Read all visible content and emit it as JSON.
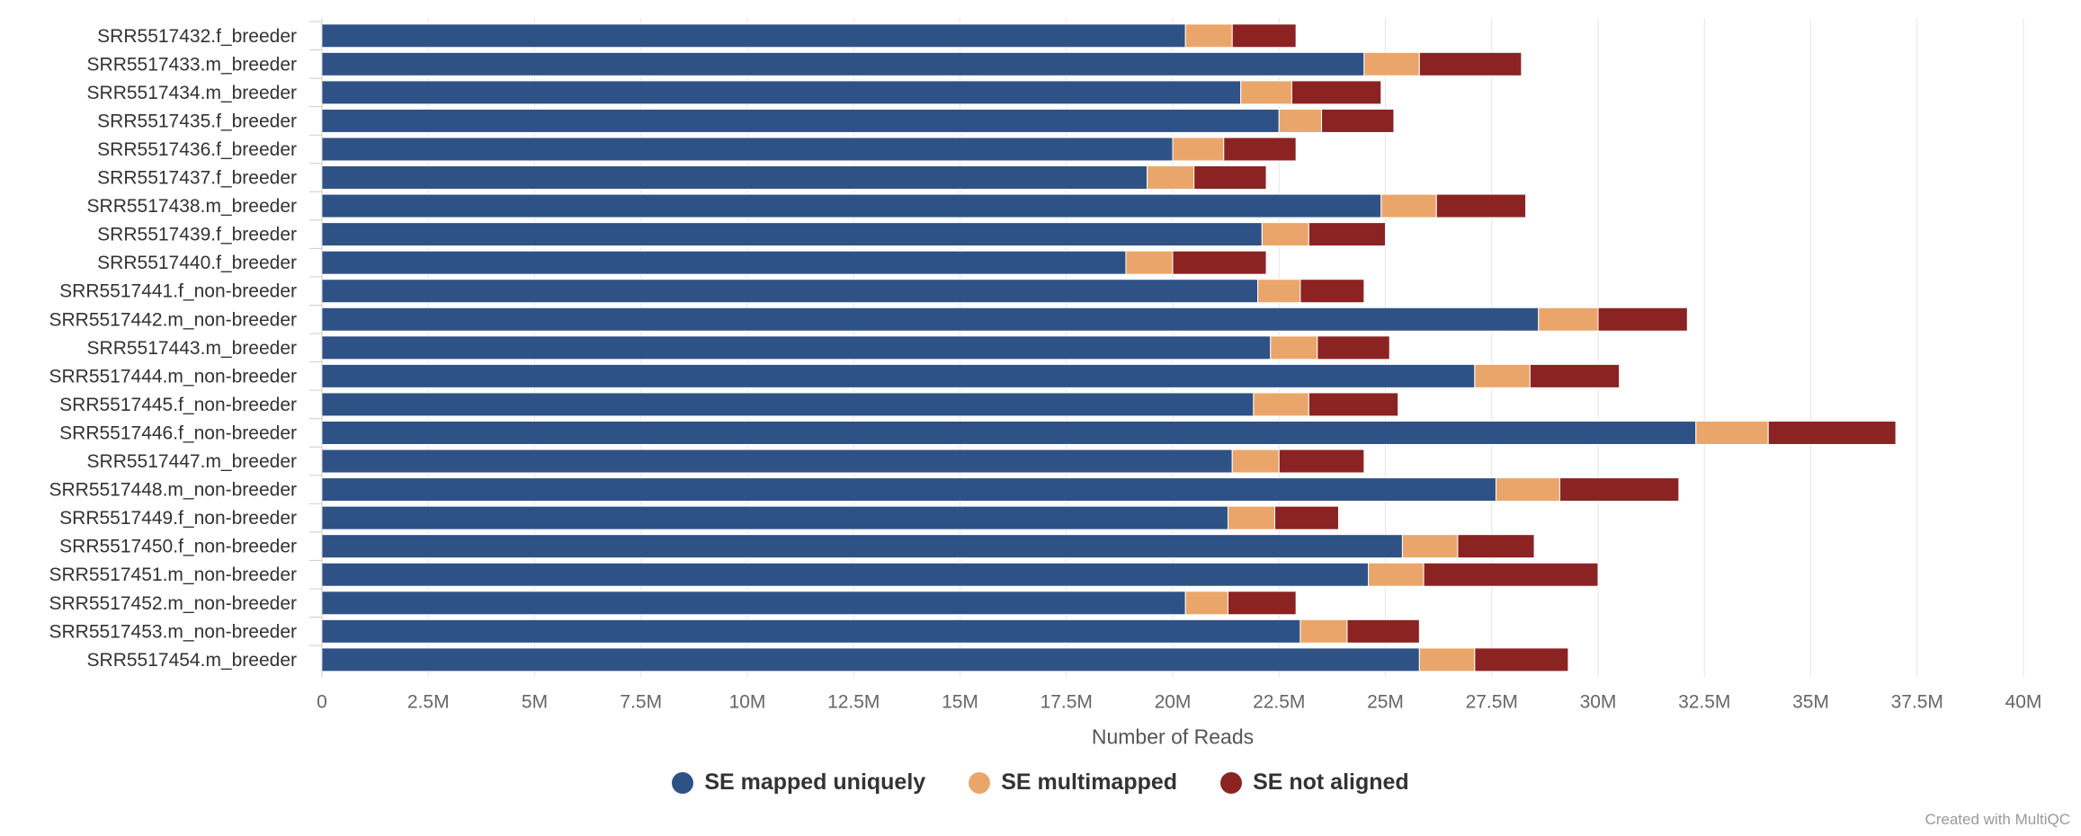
{
  "chart_data": {
    "type": "bar",
    "orientation": "horizontal",
    "stacked": true,
    "xlabel": "Number of Reads",
    "xlim": [
      0,
      40000000
    ],
    "x_ticks": [
      "0",
      "2.5M",
      "5M",
      "7.5M",
      "10M",
      "12.5M",
      "15M",
      "17.5M",
      "20M",
      "22.5M",
      "25M",
      "27.5M",
      "30M",
      "32.5M",
      "35M",
      "37.5M",
      "40M"
    ],
    "grid": true,
    "legend_position": "bottom-center",
    "categories": [
      "SRR5517432.f_breeder",
      "SRR5517433.m_breeder",
      "SRR5517434.m_breeder",
      "SRR5517435.f_breeder",
      "SRR5517436.f_breeder",
      "SRR5517437.f_breeder",
      "SRR5517438.m_breeder",
      "SRR5517439.f_breeder",
      "SRR5517440.f_breeder",
      "SRR5517441.f_non-breeder",
      "SRR5517442.m_non-breeder",
      "SRR5517443.m_breeder",
      "SRR5517444.m_non-breeder",
      "SRR5517445.f_non-breeder",
      "SRR5517446.f_non-breeder",
      "SRR5517447.m_breeder",
      "SRR5517448.m_non-breeder",
      "SRR5517449.f_non-breeder",
      "SRR5517450.f_non-breeder",
      "SRR5517451.m_non-breeder",
      "SRR5517452.m_non-breeder",
      "SRR5517453.m_non-breeder",
      "SRR5517454.m_breeder"
    ],
    "series": [
      {
        "name": "SE mapped uniquely",
        "color": "#2f5286",
        "values": [
          20300000,
          24500000,
          21600000,
          22500000,
          20000000,
          19400000,
          24900000,
          22100000,
          18900000,
          22000000,
          28600000,
          22300000,
          27100000,
          21900000,
          32300000,
          21400000,
          27600000,
          21300000,
          25400000,
          24600000,
          20300000,
          23000000,
          25800000
        ]
      },
      {
        "name": "SE multimapped",
        "color": "#eaa66a",
        "values": [
          1100000,
          1300000,
          1200000,
          1000000,
          1200000,
          1100000,
          1300000,
          1100000,
          1100000,
          1000000,
          1400000,
          1100000,
          1300000,
          1300000,
          1700000,
          1100000,
          1500000,
          1100000,
          1300000,
          1300000,
          1000000,
          1100000,
          1300000
        ]
      },
      {
        "name": "SE not aligned",
        "color": "#8b2323",
        "values": [
          1500000,
          2400000,
          2100000,
          1700000,
          1700000,
          1700000,
          2100000,
          1800000,
          2200000,
          1500000,
          2100000,
          1700000,
          2100000,
          2100000,
          3000000,
          2000000,
          2800000,
          1500000,
          1800000,
          4100000,
          1600000,
          1700000,
          2200000
        ]
      }
    ]
  },
  "credits": "Created with MultiQC"
}
